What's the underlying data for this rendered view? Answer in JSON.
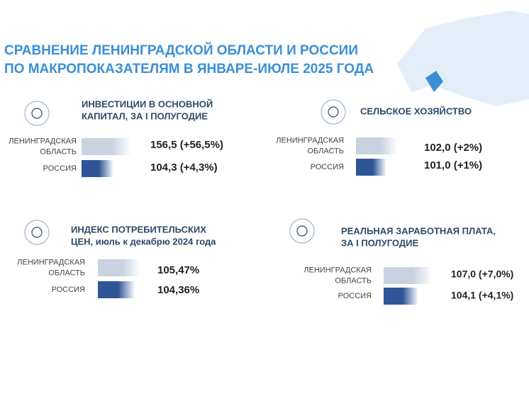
{
  "header": {
    "title": [
      "СРАВНЕНИЕ ЛЕНИНГРАДСКОЙ ОБЛАСТИ И РОССИИ",
      "ПО МАКРОПОКАЗАТЕЛЯМ В ЯНВАРЕ-ИЮЛЕ 2025 ГОДА"
    ]
  },
  "panels": [
    {
      "title": [
        "ИНВЕСТИЦИИ  В ОСНОВНОЙ",
        "КАПИТАЛ, ЗА I ПОЛУГОДИЕ"
      ],
      "rows": [
        {
          "label": [
            "ЛЕНИНГРАДСКАЯ",
            "ОБЛАСТЬ"
          ],
          "value": "156,5 (+56,5%)"
        },
        {
          "label": [
            "РОССИЯ"
          ],
          "value": "104,3 (+4,3%)"
        }
      ]
    },
    {
      "title": [
        "СЕЛЬСКОЕ ХОЗЯЙСТВО"
      ],
      "rows": [
        {
          "label": [
            "ЛЕНИНГРАДСКАЯ",
            "ОБЛАСТЬ"
          ],
          "value": "102,0 (+2%)"
        },
        {
          "label": [
            "РОССИЯ"
          ],
          "value": "101,0 (+1%)"
        }
      ]
    },
    {
      "title": [
        "ИНДЕКС ПОТРЕБИТЕЛЬСКИХ",
        "ЦЕН, июль к декабрю 2024 года"
      ],
      "rows": [
        {
          "label": [
            "ЛЕНИНГРАДСКАЯ",
            "ОБЛАСТЬ"
          ],
          "value": "105,47%"
        },
        {
          "label": [
            "РОССИЯ"
          ],
          "value": "104,36%"
        }
      ]
    },
    {
      "title": [
        "РЕАЛЬНАЯ ЗАРАБОТНАЯ ПЛАТА,",
        "ЗА I ПОЛУГОДИЕ"
      ],
      "rows": [
        {
          "label": [
            "ЛЕНИНГРАДСКАЯ",
            "ОБЛАСТЬ"
          ],
          "value": "107,0 (+7,0%)"
        },
        {
          "label": [
            "РОССИЯ"
          ],
          "value": "104,1 (+4,1%)"
        }
      ]
    }
  ]
}
